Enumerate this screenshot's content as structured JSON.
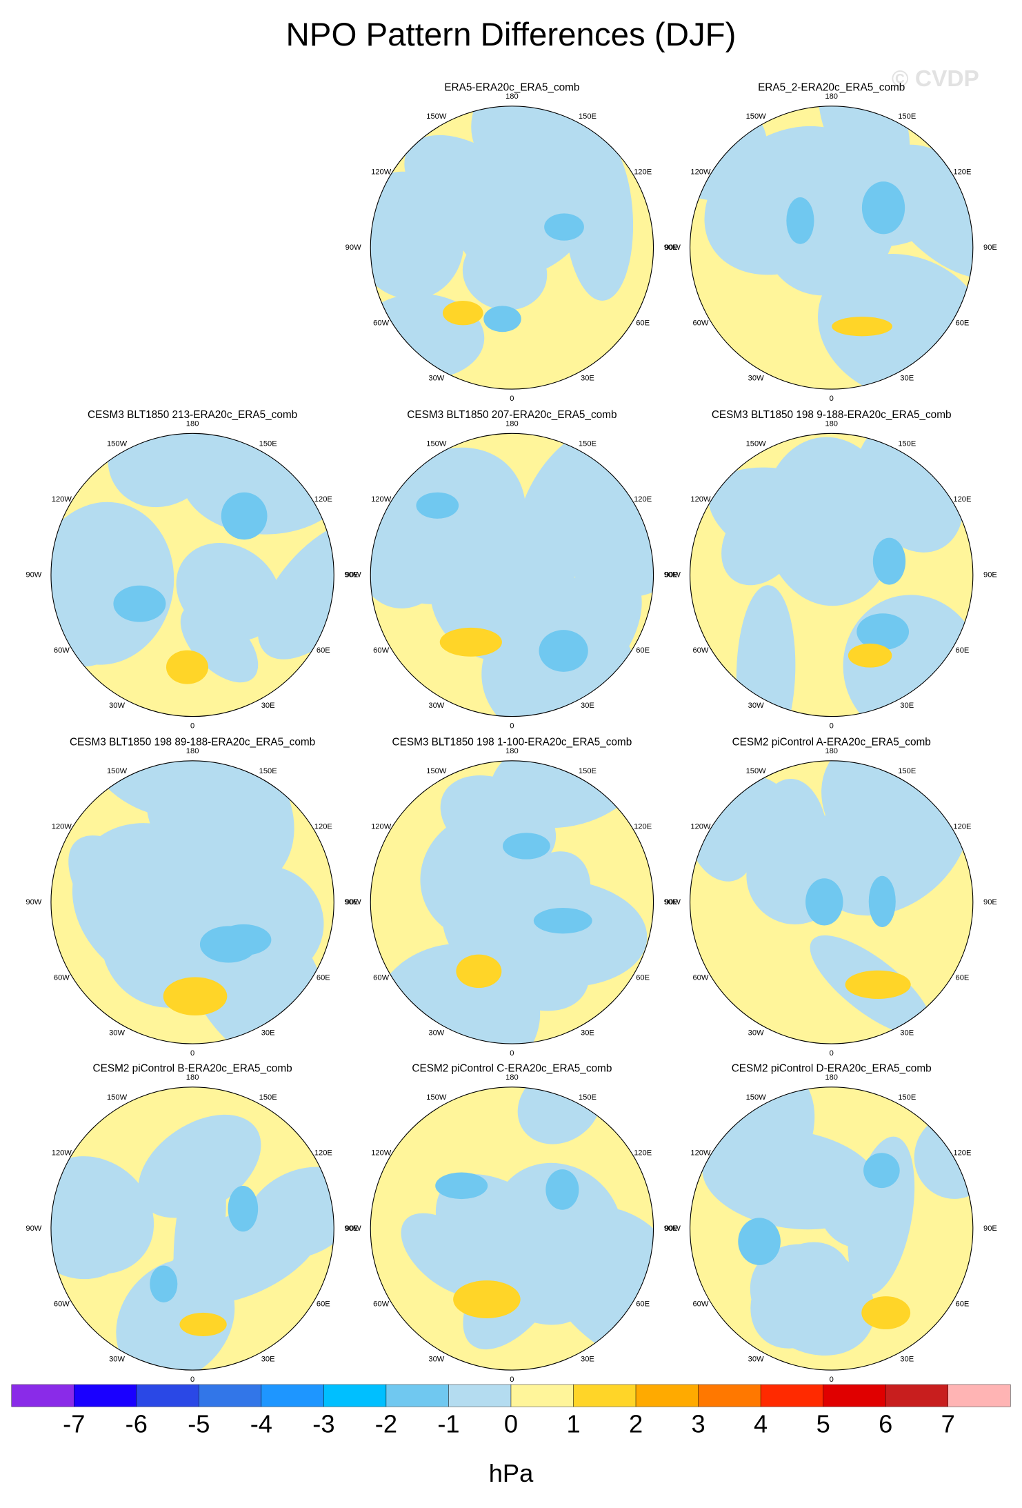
{
  "title": "NPO Pattern Differences (DJF)",
  "watermark": "© CVDP",
  "longitude_labels": [
    "180",
    "150E",
    "120E",
    "90E",
    "60E",
    "30E",
    "0",
    "30W",
    "60W",
    "90W",
    "120W",
    "150W"
  ],
  "panels": [
    {
      "title": "ERA5-ERA20c_ERA5_comb"
    },
    {
      "title": "ERA5_2-ERA20c_ERA5_comb"
    },
    {
      "title": "CESM3 BLT1850 213-ERA20c_ERA5_comb"
    },
    {
      "title": "CESM3 BLT1850 207-ERA20c_ERA5_comb"
    },
    {
      "title": "CESM3 BLT1850 198 9-188-ERA20c_ERA5_comb"
    },
    {
      "title": "CESM3 BLT1850 198 89-188-ERA20c_ERA5_comb"
    },
    {
      "title": "CESM3 BLT1850 198 1-100-ERA20c_ERA5_comb"
    },
    {
      "title": "CESM2 piControl A-ERA20c_ERA5_comb"
    },
    {
      "title": "CESM2 piControl B-ERA20c_ERA5_comb"
    },
    {
      "title": "CESM2 piControl C-ERA20c_ERA5_comb"
    },
    {
      "title": "CESM2 piControl D-ERA20c_ERA5_comb"
    }
  ],
  "colorbar": {
    "colors": [
      "#8a2be8",
      "#1a00ff",
      "#2a48e6",
      "#3276e8",
      "#1e96ff",
      "#00bfff",
      "#70c8f0",
      "#b4dcf0",
      "#fff59a",
      "#ffd528",
      "#ffaa00",
      "#ff7800",
      "#ff2a00",
      "#e00000",
      "#c81e1e",
      "#ffb4b4"
    ],
    "ticks": [
      -7,
      -6,
      -5,
      -4,
      -3,
      -2,
      -1,
      0,
      1,
      2,
      3,
      4,
      5,
      6,
      7
    ],
    "label": "hPa"
  }
}
